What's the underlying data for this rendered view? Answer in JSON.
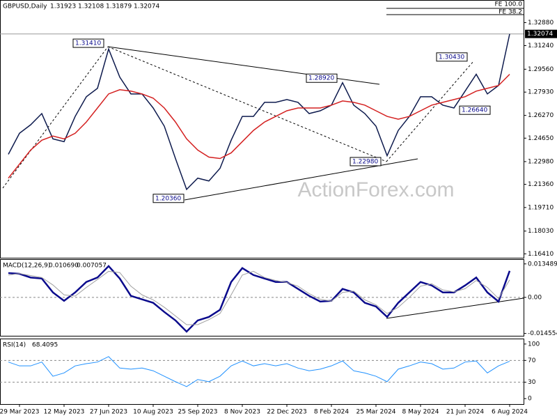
{
  "chart_data": [
    {
      "type": "line",
      "title": "GBPUSD,Daily",
      "ohlc": [
        1.31923,
        1.32108,
        1.31879,
        1.32074
      ],
      "categories": [
        null,
        "29 Mar 2023",
        null,
        null,
        null,
        "12 May 2023",
        null,
        null,
        null,
        "27 Jun 2023",
        null,
        null,
        null,
        "10 Aug 2023",
        null,
        null,
        null,
        "25 Sep 2023",
        null,
        null,
        null,
        "8 Nov 2023",
        null,
        null,
        null,
        "22 Dec 2023",
        null,
        null,
        null,
        "8 Feb 2024",
        null,
        null,
        null,
        "25 Mar 2024",
        null,
        null,
        null,
        "8 May 2024",
        null,
        null,
        null,
        "21 Jun 2024",
        null,
        null,
        null,
        "6 Aug 2024"
      ],
      "series": [
        {
          "color": "#0d1a4d",
          "values": [
            1.235,
            1.25,
            1.256,
            1.264,
            1.246,
            1.244,
            1.262,
            1.276,
            1.282,
            1.31,
            1.29,
            1.278,
            1.278,
            1.268,
            1.255,
            1.232,
            1.21,
            1.218,
            1.216,
            1.225,
            1.245,
            1.262,
            1.262,
            1.272,
            1.272,
            1.274,
            1.272,
            1.264,
            1.266,
            1.27,
            1.286,
            1.27,
            1.264,
            1.255,
            1.234,
            1.252,
            1.262,
            1.276,
            1.276,
            1.27,
            1.268,
            1.28,
            1.292,
            1.278,
            1.284,
            1.3207
          ]
        },
        {
          "color": "#d42020",
          "values": [
            1.218,
            1.228,
            1.238,
            1.245,
            1.248,
            1.246,
            1.25,
            1.258,
            1.268,
            1.278,
            1.281,
            1.28,
            1.278,
            1.275,
            1.268,
            1.258,
            1.246,
            1.238,
            1.233,
            1.232,
            1.236,
            1.244,
            1.252,
            1.258,
            1.262,
            1.266,
            1.268,
            1.268,
            1.268,
            1.27,
            1.273,
            1.272,
            1.27,
            1.266,
            1.262,
            1.26,
            1.262,
            1.266,
            1.27,
            1.272,
            1.274,
            1.276,
            1.28,
            1.282,
            1.284,
            1.292
          ]
        }
      ],
      "ylim": [
        1.1613,
        1.3449
      ],
      "yticks": [
        {
          "value": 1.3288,
          "label": "1.32880"
        },
        {
          "value": 1.3124,
          "label": "1.31240"
        },
        {
          "value": 1.2956,
          "label": "1.29560"
        },
        {
          "value": 1.2793,
          "label": "1.27930"
        },
        {
          "value": 1.2627,
          "label": "1.26270"
        },
        {
          "value": 1.2465,
          "label": "1.24650"
        },
        {
          "value": 1.2298,
          "label": "1.22980"
        },
        {
          "value": 1.2136,
          "label": "1.21360"
        },
        {
          "value": 1.1971,
          "label": "1.19710"
        },
        {
          "value": 1.1803,
          "label": "1.18030"
        },
        {
          "value": 1.1641,
          "label": "1.16410"
        }
      ],
      "levels": [
        {
          "value": 1.3141,
          "label": "1.31410"
        },
        {
          "value": 1.2892,
          "label": "1.28920"
        },
        {
          "value": 1.3043,
          "label": "1.30430"
        },
        {
          "value": 1.2664,
          "label": "1.26640"
        },
        {
          "value": 1.2298,
          "label": "1.22980"
        },
        {
          "value": 1.2036,
          "label": "1.20360"
        }
      ],
      "fibo": [
        "FE 100.0",
        "FE 38.2"
      ],
      "watermark": "ActionForex.com"
    },
    {
      "type": "line",
      "title": "MACD(12,26,9)",
      "readout": [
        {
          "value": 0.01069,
          "label": "0.010690"
        },
        0.007057
      ],
      "series": [
        {
          "color": "#0a0a8c",
          "width": 2.5,
          "values": [
            0.0098,
            0.0095,
            0.008,
            0.0076,
            0.002,
            -0.0014,
            0.002,
            0.0062,
            0.008,
            0.0126,
            0.0076,
            0.0006,
            -0.0008,
            -0.0022,
            -0.0059,
            -0.0093,
            -0.0138,
            -0.0093,
            -0.0079,
            -0.005,
            0.0062,
            0.0118,
            0.009,
            0.0076,
            0.0062,
            0.0062,
            0.0034,
            0.0006,
            -0.0017,
            -0.0014,
            0.0034,
            0.002,
            -0.0022,
            -0.0037,
            -0.0079,
            -0.0022,
            0.002,
            0.0062,
            0.0048,
            0.002,
            0.002,
            0.0048,
            0.008,
            0.002,
            -0.0017,
            0.01069
          ]
        },
        {
          "color": "#a0a0a0",
          "width": 1,
          "values": [
            0.009,
            0.0096,
            0.0088,
            0.008,
            0.005,
            0.001,
            0.0005,
            0.004,
            0.0072,
            0.0105,
            0.01,
            0.0045,
            0.001,
            -0.001,
            -0.004,
            -0.0075,
            -0.011,
            -0.011,
            -0.009,
            -0.0065,
            0.001,
            0.009,
            0.0105,
            0.008,
            0.0068,
            0.006,
            0.0045,
            0.0015,
            -0.0008,
            -0.0015,
            0.002,
            0.0025,
            -0.001,
            -0.003,
            -0.0065,
            -0.004,
            0,
            0.0045,
            0.0055,
            0.003,
            0.0022,
            0.0035,
            0.0068,
            0.004,
            -0.0005,
            0.007057
          ]
        }
      ],
      "ylim": [
        -0.0155,
        0.0154
      ],
      "yticks": [
        0.013489,
        {
          "value": 0,
          "label": "0.00"
        },
        -0.014554
      ]
    },
    {
      "type": "line",
      "title": "RSI(14)",
      "readout": [
        68.4095
      ],
      "series": [
        {
          "color": "#1e90ff",
          "width": 1,
          "values": [
            67,
            60,
            60,
            67,
            41,
            47,
            60,
            64,
            67,
            77,
            56,
            54,
            56,
            51,
            41,
            31,
            22,
            35,
            31,
            41,
            60,
            69,
            60,
            64,
            60,
            64,
            56,
            51,
            54,
            60,
            69,
            51,
            47,
            41,
            31,
            54,
            60,
            67,
            64,
            54,
            56,
            67,
            69,
            47,
            60,
            68.4095
          ]
        }
      ],
      "ylim": [
        -10,
        110
      ],
      "yticks": [
        100,
        70,
        30,
        0
      ],
      "levels": [
        70,
        30
      ]
    }
  ]
}
